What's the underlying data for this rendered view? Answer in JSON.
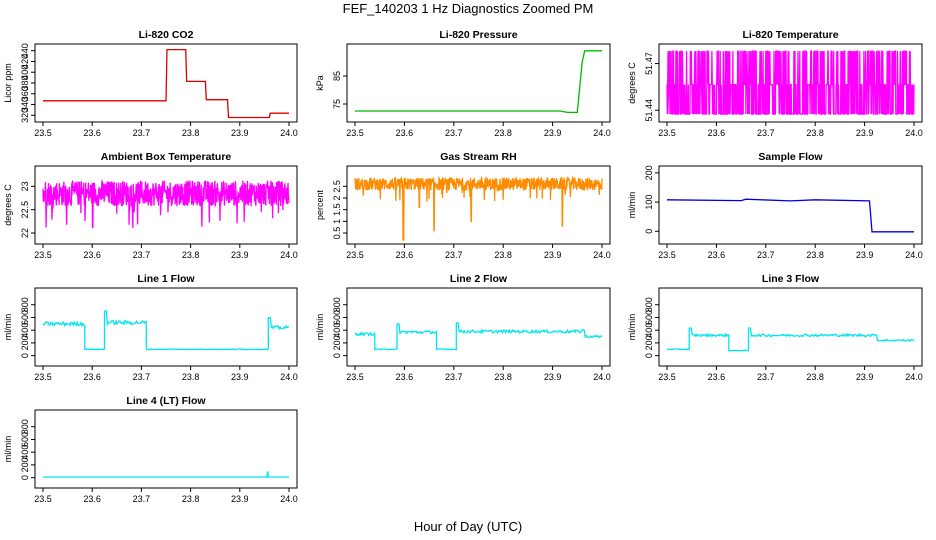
{
  "figure": {
    "title": "FEF_140203  1 Hz Diagnostics Zoomed PM",
    "xlabel": "Hour of Day (UTC)"
  },
  "chart_data": [
    {
      "type": "line",
      "title": "Li-820 CO2",
      "ylabel": "Licor ppm",
      "color": "#dd0000",
      "xlim": [
        23.5,
        24.0
      ],
      "ylim": [
        315,
        445
      ],
      "xticks": [
        "23.5",
        "23.6",
        "23.7",
        "23.8",
        "23.9",
        "24.0"
      ],
      "yticks": [
        320,
        340,
        360,
        380,
        400,
        420,
        440
      ],
      "x": [
        23.5,
        23.75,
        23.752,
        23.79,
        23.792,
        23.83,
        23.832,
        23.875,
        23.877,
        23.96,
        23.962,
        24.0
      ],
      "y": [
        347,
        347,
        442,
        442,
        383,
        383,
        349,
        349,
        316,
        316,
        324,
        324
      ]
    },
    {
      "type": "line",
      "title": "Li-820 Pressure",
      "ylabel": "kPa",
      "color": "#00bb00",
      "xlim": [
        23.5,
        24.0
      ],
      "ylim": [
        70,
        95
      ],
      "xticks": [
        "23.5",
        "23.6",
        "23.7",
        "23.8",
        "23.9",
        "24.0"
      ],
      "yticks": [
        75,
        85
      ],
      "x": [
        23.5,
        23.915,
        23.93,
        23.95,
        23.96,
        23.965,
        24.0
      ],
      "y": [
        72.5,
        72.5,
        72.0,
        72.0,
        90.0,
        94.0,
        94.0
      ]
    },
    {
      "type": "line",
      "title": "Li-820 Temperature",
      "ylabel": "degrees C",
      "color": "#ff00ff",
      "xlim": [
        23.5,
        24.0
      ],
      "ylim": [
        51.435,
        51.48
      ],
      "xticks": [
        "23.5",
        "23.6",
        "23.7",
        "23.8",
        "23.9",
        "24.0"
      ],
      "yticks": [
        "51.44",
        "51.47"
      ],
      "levels": [
        51.4375,
        51.4565,
        51.478
      ]
    },
    {
      "type": "line",
      "title": "Ambient Box Temperature",
      "ylabel": "degrees C",
      "color": "#ff00ff",
      "xlim": [
        23.5,
        24.0
      ],
      "ylim": [
        21.85,
        23.35
      ],
      "xticks": [
        "23.5",
        "23.6",
        "23.7",
        "23.8",
        "23.9",
        "24.0"
      ],
      "yticks": [
        22.0,
        22.5,
        23.0
      ],
      "center": 22.85,
      "spread": 0.55
    },
    {
      "type": "line",
      "title": "Gas Stream RH",
      "ylabel": "percent",
      "color": "#ff8c00",
      "xlim": [
        23.5,
        24.0
      ],
      "ylim": [
        0.2,
        3.2
      ],
      "xticks": [
        "23.5",
        "23.6",
        "23.7",
        "23.8",
        "23.9",
        "24.0"
      ],
      "yticks": [
        0.5,
        1.0,
        1.5,
        2.0,
        2.5
      ],
      "center": 2.6,
      "spread": 0.55,
      "dips": [
        [
          23.598,
          0.2
        ],
        [
          23.66,
          0.6
        ],
        [
          23.735,
          1.0
        ],
        [
          23.63,
          1.6
        ],
        [
          23.92,
          0.8
        ]
      ]
    },
    {
      "type": "line",
      "title": "Sample Flow",
      "ylabel": "ml/min",
      "color": "#0000dd",
      "xlim": [
        23.5,
        24.0
      ],
      "ylim": [
        -30,
        210
      ],
      "xticks": [
        "23.5",
        "23.6",
        "23.7",
        "23.8",
        "23.9",
        "24.0"
      ],
      "yticks": [
        0,
        100,
        200
      ],
      "x": [
        23.5,
        23.65,
        23.66,
        23.75,
        23.8,
        23.91,
        23.915,
        24.0
      ],
      "y": [
        108,
        105,
        110,
        104,
        108,
        104,
        -2,
        -2
      ]
    },
    {
      "type": "line",
      "title": "Line 1 Flow",
      "ylabel": "ml/min",
      "color": "#00e5ee",
      "xlim": [
        23.5,
        24.0
      ],
      "ylim": [
        -100,
        1000
      ],
      "xticks": [
        "23.5",
        "23.6",
        "23.7",
        "23.8",
        "23.9",
        "24.0"
      ],
      "yticks": [
        0,
        200,
        400,
        600,
        800
      ],
      "segments": [
        [
          23.5,
          23.585,
          500
        ],
        [
          23.585,
          23.625,
          100
        ],
        [
          23.625,
          23.71,
          520
        ],
        [
          23.71,
          23.958,
          100
        ],
        [
          23.958,
          24.0,
          440
        ]
      ]
    },
    {
      "type": "line",
      "title": "Line 2 Flow",
      "ylabel": "ml/min",
      "color": "#00e5ee",
      "xlim": [
        23.5,
        24.0
      ],
      "ylim": [
        -100,
        1000
      ],
      "xticks": [
        "23.5",
        "23.6",
        "23.7",
        "23.8",
        "23.9",
        "24.0"
      ],
      "yticks": [
        0,
        200,
        400,
        600,
        800
      ],
      "segments": [
        [
          23.5,
          23.54,
          340
        ],
        [
          23.54,
          23.585,
          100
        ],
        [
          23.585,
          23.665,
          370
        ],
        [
          23.665,
          23.705,
          100
        ],
        [
          23.705,
          23.96,
          380
        ],
        [
          23.96,
          24.0,
          300
        ]
      ]
    },
    {
      "type": "line",
      "title": "Line 3 Flow",
      "ylabel": "ml/min",
      "color": "#00e5ee",
      "xlim": [
        23.5,
        24.0
      ],
      "ylim": [
        -100,
        1000
      ],
      "xticks": [
        "23.5",
        "23.6",
        "23.7",
        "23.8",
        "23.9",
        "24.0"
      ],
      "yticks": [
        0,
        200,
        400,
        600,
        800
      ],
      "segments": [
        [
          23.5,
          23.545,
          100
        ],
        [
          23.545,
          23.625,
          320
        ],
        [
          23.625,
          23.665,
          80
        ],
        [
          23.665,
          23.92,
          320
        ],
        [
          23.92,
          24.0,
          240
        ]
      ]
    },
    {
      "type": "line",
      "title": "Line 4 (LT) Flow",
      "ylabel": "ml/min",
      "color": "#00e5ee",
      "xlim": [
        23.5,
        24.0
      ],
      "ylim": [
        -100,
        1000
      ],
      "xticks": [
        "23.5",
        "23.6",
        "23.7",
        "23.8",
        "23.9",
        "24.0"
      ],
      "yticks": [
        0,
        200,
        400,
        600,
        800
      ],
      "x": [
        23.5,
        23.955,
        23.957,
        23.958,
        23.96,
        24.0
      ],
      "y": [
        10,
        10,
        100,
        10,
        10,
        10
      ]
    }
  ]
}
